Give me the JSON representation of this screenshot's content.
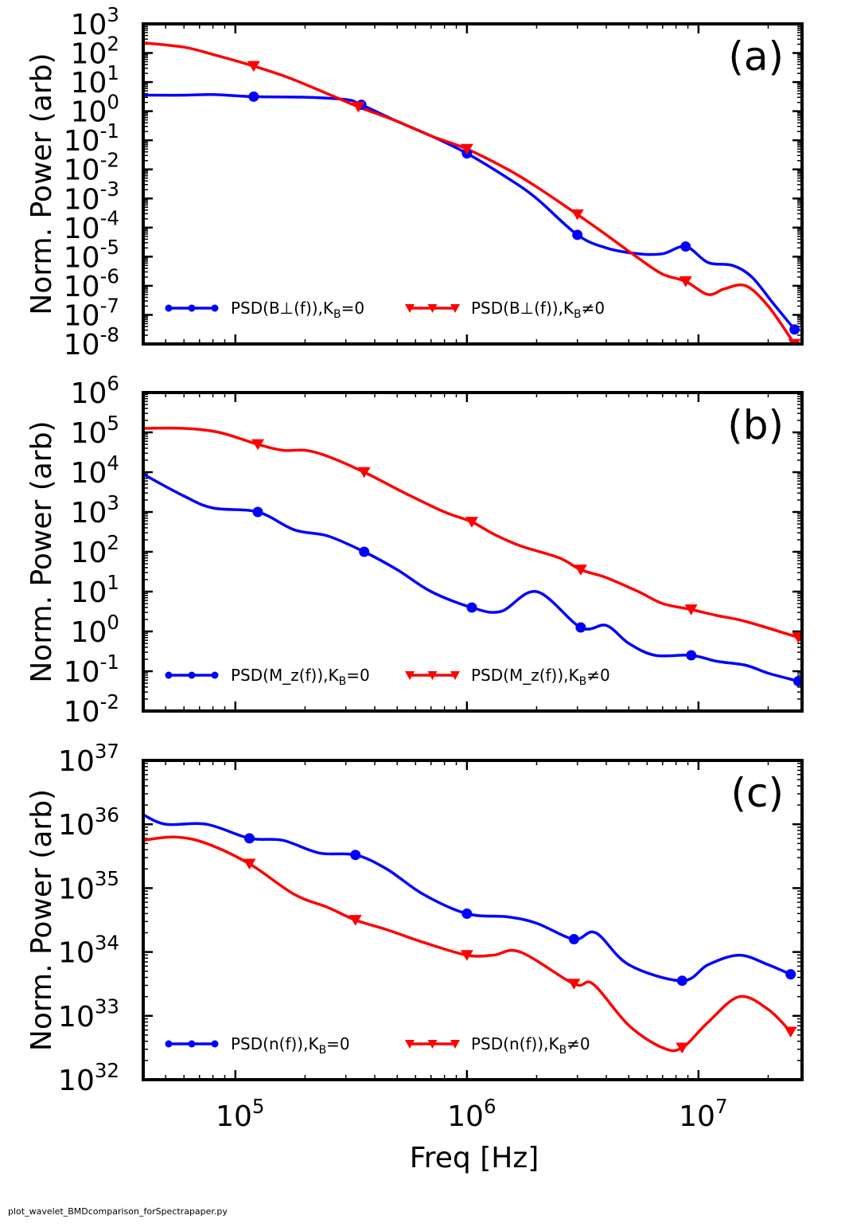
{
  "footer": {
    "script_name": "plot_wavelet_BMDcomparison_forSpectrapaper.py"
  },
  "colors": {
    "series_a": "#0000ff",
    "series_b": "#ff0000",
    "axis": "#000000"
  },
  "shared_x_axis": {
    "label": "Freq [Hz]",
    "scale": "log",
    "xlim": [
      40000,
      28000000
    ],
    "ticks": [
      {
        "value": 100000,
        "base": "10",
        "exp": "5"
      },
      {
        "value": 1000000,
        "base": "10",
        "exp": "6"
      },
      {
        "value": 10000000,
        "base": "10",
        "exp": "7"
      }
    ]
  },
  "chart_data": [
    {
      "type": "line",
      "panel_label": "(a)",
      "ylabel": "Norm. Power (arb)",
      "yscale": "log",
      "ylim_exp": [
        -8,
        3
      ],
      "ytick_labels": [
        {
          "base": "10",
          "exp": "-8"
        },
        {
          "base": "10",
          "exp": "-7"
        },
        {
          "base": "10",
          "exp": "-6"
        },
        {
          "base": "10",
          "exp": "-5"
        },
        {
          "base": "10",
          "exp": "-4"
        },
        {
          "base": "10",
          "exp": "-3"
        },
        {
          "base": "10",
          "exp": "-2"
        },
        {
          "base": "10",
          "exp": "-1"
        },
        {
          "base": "10",
          "exp": "0"
        },
        {
          "base": "10",
          "exp": "1"
        },
        {
          "base": "10",
          "exp": "2"
        },
        {
          "base": "10",
          "exp": "3"
        }
      ],
      "legend": {
        "placement": "lower-left",
        "entries": [
          "PSD(B⊥(f)),K_B=0",
          "PSD(B⊥(f)),K_B≠0"
        ]
      },
      "series": [
        {
          "name": "PSD(B⊥(f)),K_B=0",
          "color": "#0000ff",
          "marker": "circle",
          "x": [
            40000,
            60000,
            80000,
            120000,
            200000,
            300000,
            350000,
            500000,
            700000,
            1000000,
            1500000,
            2000000,
            3000000,
            4000000,
            5500000,
            7000000,
            8800000,
            11000000,
            14000000,
            17000000,
            21000000,
            26000000
          ],
          "log10y": [
            0.55,
            0.55,
            0.57,
            0.5,
            0.48,
            0.4,
            0.22,
            -0.35,
            -0.85,
            -1.45,
            -2.3,
            -3.0,
            -4.25,
            -4.7,
            -4.9,
            -4.9,
            -4.65,
            -5.2,
            -5.3,
            -5.7,
            -6.6,
            -7.5
          ],
          "marker_x": [
            120000,
            350000,
            1000000,
            3000000,
            8800000,
            26000000
          ],
          "marker_log10y": [
            0.5,
            0.22,
            -1.45,
            -4.25,
            -4.65,
            -7.5
          ]
        },
        {
          "name": "PSD(B⊥(f)),K_B≠0",
          "color": "#ff0000",
          "marker": "triangle-down",
          "x": [
            40000,
            60000,
            80000,
            120000,
            170000,
            250000,
            340000,
            500000,
            700000,
            1000000,
            1500000,
            2000000,
            3000000,
            4000000,
            5500000,
            7000000,
            8800000,
            11000000,
            13000000,
            16000000,
            20000000,
            26000000
          ],
          "log10y": [
            2.35,
            2.2,
            1.95,
            1.55,
            1.15,
            0.6,
            0.15,
            -0.35,
            -0.85,
            -1.3,
            -2.0,
            -2.6,
            -3.55,
            -4.25,
            -5.05,
            -5.6,
            -5.85,
            -6.3,
            -6.1,
            -6.0,
            -6.7,
            -8.0
          ],
          "marker_x": [
            120000,
            340000,
            1000000,
            3000000,
            8800000,
            26000000
          ],
          "marker_log10y": [
            1.55,
            0.15,
            -1.3,
            -3.55,
            -5.85,
            -8.0
          ]
        }
      ]
    },
    {
      "type": "line",
      "panel_label": "(b)",
      "ylabel": "Norm. Power (arb)",
      "yscale": "log",
      "ylim_exp": [
        -2,
        6
      ],
      "ytick_labels": [
        {
          "base": "10",
          "exp": "-2"
        },
        {
          "base": "10",
          "exp": "-1"
        },
        {
          "base": "10",
          "exp": "0"
        },
        {
          "base": "10",
          "exp": "1"
        },
        {
          "base": "10",
          "exp": "2"
        },
        {
          "base": "10",
          "exp": "3"
        },
        {
          "base": "10",
          "exp": "4"
        },
        {
          "base": "10",
          "exp": "5"
        },
        {
          "base": "10",
          "exp": "6"
        }
      ],
      "legend": {
        "placement": "lower-left",
        "entries": [
          "PSD(M_z(f)),K_B=0",
          "PSD(M_z(f)),K_B≠0"
        ]
      },
      "series": [
        {
          "name": "PSD(M_z(f)),K_B=0",
          "color": "#0000ff",
          "marker": "circle",
          "x": [
            40000,
            60000,
            80000,
            125000,
            180000,
            250000,
            360000,
            500000,
            700000,
            1050000,
            1400000,
            2000000,
            3100000,
            4000000,
            5000000,
            6500000,
            9300000,
            12000000,
            16000000,
            20000000,
            27000000
          ],
          "log10y": [
            3.95,
            3.4,
            3.1,
            3.0,
            2.55,
            2.4,
            2.0,
            1.55,
            1.0,
            0.6,
            0.5,
            1.0,
            0.1,
            0.15,
            -0.3,
            -0.6,
            -0.6,
            -0.75,
            -0.85,
            -1.05,
            -1.25
          ],
          "marker_x": [
            125000,
            360000,
            1050000,
            3100000,
            9300000,
            27000000
          ],
          "marker_log10y": [
            3.0,
            2.0,
            0.6,
            0.1,
            -0.6,
            -1.25
          ]
        },
        {
          "name": "PSD(M_z(f)),K_B≠0",
          "color": "#ff0000",
          "marker": "triangle-down",
          "x": [
            40000,
            60000,
            85000,
            125000,
            160000,
            200000,
            250000,
            360000,
            550000,
            800000,
            1050000,
            1300000,
            1700000,
            2500000,
            3100000,
            4000000,
            5500000,
            7000000,
            9300000,
            12000000,
            16000000,
            27000000
          ],
          "log10y": [
            5.1,
            5.1,
            5.0,
            4.7,
            4.55,
            4.55,
            4.4,
            4.0,
            3.45,
            3.0,
            2.75,
            2.45,
            2.15,
            1.85,
            1.55,
            1.35,
            1.0,
            0.7,
            0.55,
            0.4,
            0.25,
            -0.15
          ],
          "marker_x": [
            125000,
            360000,
            1050000,
            3100000,
            9300000,
            27000000
          ],
          "marker_log10y": [
            4.7,
            4.0,
            2.75,
            1.55,
            0.55,
            -0.15
          ]
        }
      ]
    },
    {
      "type": "line",
      "panel_label": "(c)",
      "ylabel": "Norm. Power (arb)",
      "yscale": "log",
      "ylim_exp": [
        32,
        37
      ],
      "ytick_labels": [
        {
          "base": "10",
          "exp": "32"
        },
        {
          "base": "10",
          "exp": "33"
        },
        {
          "base": "10",
          "exp": "34"
        },
        {
          "base": "10",
          "exp": "35"
        },
        {
          "base": "10",
          "exp": "36"
        },
        {
          "base": "10",
          "exp": "37"
        }
      ],
      "legend": {
        "placement": "lower-left",
        "entries": [
          "PSD(n(f)),K_B=0",
          "PSD(n(f)),K_B≠0"
        ]
      },
      "series": [
        {
          "name": "PSD(n(f)),K_B=0",
          "color": "#0000ff",
          "marker": "circle",
          "x": [
            40000,
            50000,
            75000,
            115000,
            160000,
            230000,
            330000,
            450000,
            650000,
            1000000,
            1500000,
            2000000,
            2900000,
            3600000,
            5000000,
            8500000,
            11000000,
            15000000,
            20000000,
            25000000
          ],
          "log10y": [
            36.15,
            36.0,
            36.0,
            35.78,
            35.75,
            35.55,
            35.52,
            35.3,
            34.9,
            34.6,
            34.55,
            34.45,
            34.2,
            34.3,
            33.8,
            33.55,
            33.8,
            33.95,
            33.8,
            33.65
          ],
          "marker_x": [
            115000,
            330000,
            1000000,
            2900000,
            8500000,
            25000000
          ],
          "marker_log10y": [
            35.78,
            35.52,
            34.6,
            34.2,
            33.55,
            33.65
          ]
        },
        {
          "name": "PSD(n(f)),K_B≠0",
          "color": "#ff0000",
          "marker": "triangle-down",
          "x": [
            40000,
            55000,
            75000,
            115000,
            180000,
            250000,
            330000,
            450000,
            650000,
            1000000,
            1300000,
            1700000,
            2900000,
            3500000,
            5000000,
            7000000,
            8500000,
            11000000,
            15000000,
            20000000,
            25000000
          ],
          "log10y": [
            35.75,
            35.8,
            35.7,
            35.38,
            34.9,
            34.7,
            34.5,
            34.35,
            34.15,
            33.95,
            33.95,
            34.0,
            33.5,
            33.5,
            32.85,
            32.5,
            32.5,
            32.9,
            33.3,
            33.1,
            32.75
          ],
          "marker_x": [
            115000,
            330000,
            1000000,
            2900000,
            8500000,
            25000000
          ],
          "marker_log10y": [
            35.38,
            34.5,
            33.95,
            33.5,
            32.5,
            32.75
          ]
        }
      ]
    }
  ]
}
